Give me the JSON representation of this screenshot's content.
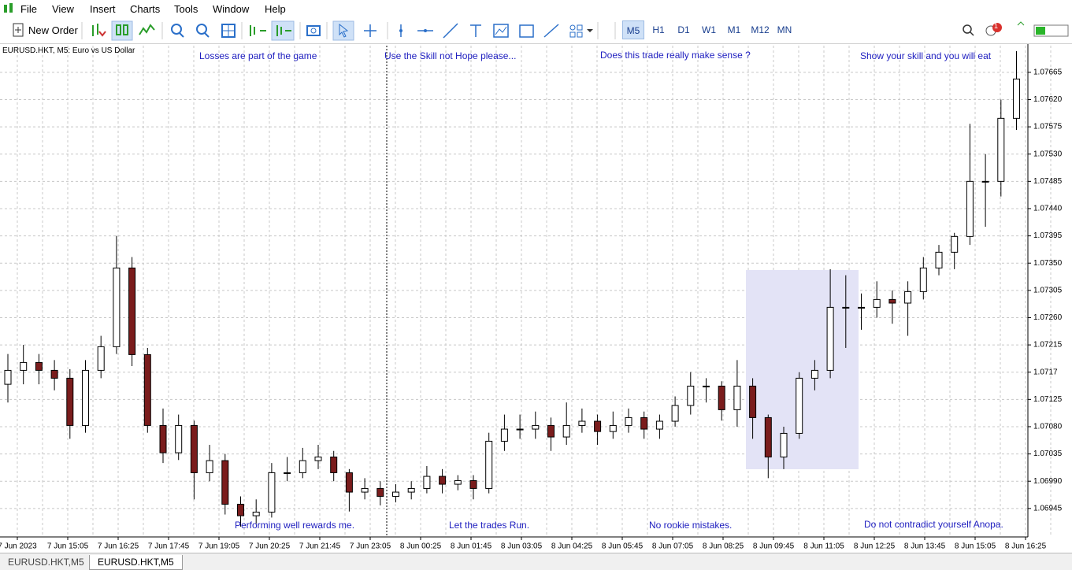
{
  "menu": [
    "File",
    "View",
    "Insert",
    "Charts",
    "Tools",
    "Window",
    "Help"
  ],
  "toolbar": {
    "new_order": "New Order",
    "timeframes": [
      "M5",
      "H1",
      "D1",
      "W1",
      "M1",
      "M12",
      "MN"
    ],
    "notifications": 1
  },
  "chart_data": {
    "type": "candlestick",
    "title": "EURUSD.HKT, M5:  Euro vs US Dollar",
    "x_labels": [
      "7 Jun 2023",
      "7 Jun 15:05",
      "7 Jun 16:25",
      "7 Jun 17:45",
      "7 Jun 19:05",
      "7 Jun 20:25",
      "7 Jun 21:45",
      "7 Jun 23:05",
      "8 Jun 00:25",
      "8 Jun 01:45",
      "8 Jun 03:05",
      "8 Jun 04:25",
      "8 Jun 05:45",
      "8 Jun 07:05",
      "8 Jun 08:25",
      "8 Jun 09:45",
      "8 Jun 11:05",
      "8 Jun 12:25",
      "8 Jun 13:45",
      "8 Jun 15:05",
      "8 Jun 16:25"
    ],
    "candles": [
      [
        1.0715,
        1.072,
        1.0712,
        1.07173
      ],
      [
        1.07173,
        1.07215,
        1.0715,
        1.07186
      ],
      [
        1.07186,
        1.072,
        1.0715,
        1.07173
      ],
      [
        1.07173,
        1.0719,
        1.0714,
        1.0716
      ],
      [
        1.0716,
        1.07175,
        1.0706,
        1.07082
      ],
      [
        1.07082,
        1.0719,
        1.0707,
        1.07173
      ],
      [
        1.07173,
        1.0723,
        1.0716,
        1.07212
      ],
      [
        1.07212,
        1.07395,
        1.072,
        1.07342
      ],
      [
        1.07342,
        1.0736,
        1.0718,
        1.07199
      ],
      [
        1.07199,
        1.0721,
        1.0707,
        1.07082
      ],
      [
        1.07082,
        1.0711,
        1.0702,
        1.07037
      ],
      [
        1.07037,
        1.071,
        1.07025,
        1.07082
      ],
      [
        1.07082,
        1.0709,
        1.0696,
        1.07004
      ],
      [
        1.07004,
        1.0705,
        1.0699,
        1.07024
      ],
      [
        1.07024,
        1.07035,
        1.06935,
        1.06952
      ],
      [
        1.06952,
        1.06965,
        1.06915,
        1.06933
      ],
      [
        1.06933,
        1.0696,
        1.0692,
        1.06939
      ],
      [
        1.06939,
        1.0702,
        1.0693,
        1.07004
      ],
      [
        1.07004,
        1.0703,
        1.0699,
        1.07004
      ],
      [
        1.07004,
        1.07045,
        1.06995,
        1.07024
      ],
      [
        1.07024,
        1.0705,
        1.0701,
        1.0703
      ],
      [
        1.0703,
        1.0704,
        1.0699,
        1.07004
      ],
      [
        1.07004,
        1.0701,
        1.0694,
        1.06972
      ],
      [
        1.06972,
        1.06995,
        1.0696,
        1.06978
      ],
      [
        1.06978,
        1.0699,
        1.0695,
        1.06965
      ],
      [
        1.06965,
        1.06985,
        1.06955,
        1.06972
      ],
      [
        1.06972,
        1.0699,
        1.0696,
        1.06978
      ],
      [
        1.06978,
        1.07015,
        1.0697,
        1.06998
      ],
      [
        1.06998,
        1.0701,
        1.0697,
        1.06985
      ],
      [
        1.06985,
        1.07,
        1.06975,
        1.06991
      ],
      [
        1.06991,
        1.07,
        1.0696,
        1.06978
      ],
      [
        1.06978,
        1.0707,
        1.0697,
        1.07056
      ],
      [
        1.07056,
        1.071,
        1.0704,
        1.07076
      ],
      [
        1.07076,
        1.071,
        1.0706,
        1.07076
      ],
      [
        1.07076,
        1.07105,
        1.0706,
        1.07082
      ],
      [
        1.07082,
        1.07095,
        1.0704,
        1.07063
      ],
      [
        1.07063,
        1.0712,
        1.0705,
        1.07082
      ],
      [
        1.07082,
        1.0711,
        1.0707,
        1.07089
      ],
      [
        1.07089,
        1.071,
        1.0705,
        1.07072
      ],
      [
        1.07072,
        1.07105,
        1.0706,
        1.07082
      ],
      [
        1.07082,
        1.0711,
        1.0707,
        1.07095
      ],
      [
        1.07095,
        1.07105,
        1.0706,
        1.07076
      ],
      [
        1.07076,
        1.071,
        1.0706,
        1.07089
      ],
      [
        1.07089,
        1.0713,
        1.0708,
        1.07115
      ],
      [
        1.07115,
        1.0717,
        1.071,
        1.07147
      ],
      [
        1.07147,
        1.0716,
        1.0712,
        1.07147
      ],
      [
        1.07147,
        1.07155,
        1.0709,
        1.07108
      ],
      [
        1.07108,
        1.0719,
        1.0708,
        1.07147
      ],
      [
        1.07147,
        1.0716,
        1.0706,
        1.07095
      ],
      [
        1.07095,
        1.071,
        1.06995,
        1.0703
      ],
      [
        1.0703,
        1.0708,
        1.0701,
        1.07069
      ],
      [
        1.07069,
        1.0717,
        1.0706,
        1.0716
      ],
      [
        1.0716,
        1.0719,
        1.0714,
        1.07173
      ],
      [
        1.07173,
        1.0734,
        1.0716,
        1.07277
      ],
      [
        1.07277,
        1.0733,
        1.0721,
        1.07277
      ],
      [
        1.07277,
        1.073,
        1.0724,
        1.07277
      ],
      [
        1.07277,
        1.0732,
        1.0726,
        1.0729
      ],
      [
        1.0729,
        1.07305,
        1.0725,
        1.07284
      ],
      [
        1.07284,
        1.0732,
        1.0723,
        1.07303
      ],
      [
        1.07303,
        1.0736,
        1.0729,
        1.07342
      ],
      [
        1.07342,
        1.0738,
        1.0733,
        1.07368
      ],
      [
        1.07368,
        1.074,
        1.0734,
        1.07394
      ],
      [
        1.07394,
        1.0758,
        1.0738,
        1.07485
      ],
      [
        1.07485,
        1.0753,
        1.0741,
        1.07485
      ],
      [
        1.07485,
        1.0762,
        1.0746,
        1.07589
      ],
      [
        1.07589,
        1.077,
        1.0757,
        1.07654
      ]
    ],
    "up_color": "#ffffff",
    "down_color": "#7a1c1c",
    "ylim": [
      1.06898,
      1.07709
    ],
    "yticks": [
      1.06945,
      {
        "value": 1.0699,
        "label": "1.06990"
      },
      1.07035,
      {
        "value": 1.0708,
        "label": "1.07080"
      },
      1.07125,
      1.0717,
      1.07215,
      {
        "value": 1.0726,
        "label": "1.07260"
      },
      1.07305,
      {
        "value": 1.0735,
        "label": "1.07350"
      },
      1.07395,
      {
        "value": 1.0744,
        "label": "1.07440"
      },
      1.07485,
      {
        "value": 1.0753,
        "label": "1.07530"
      },
      1.07575,
      {
        "value": 1.0762,
        "label": "1.07620"
      },
      1.07665
    ],
    "grid": true,
    "annotations": [
      "Losses are part of the game",
      "Use the Skill not Hope please...",
      "Does this trade really make sense ?",
      "Show your skill and you will eat",
      "Performing well rewards me.",
      "Let the trades Run.",
      "No rookie mistakes.",
      "Do not contradict yourself Anopa."
    ]
  },
  "tabs": [
    "EURUSD.HKT,M5",
    "EURUSD.HKT,M5"
  ]
}
